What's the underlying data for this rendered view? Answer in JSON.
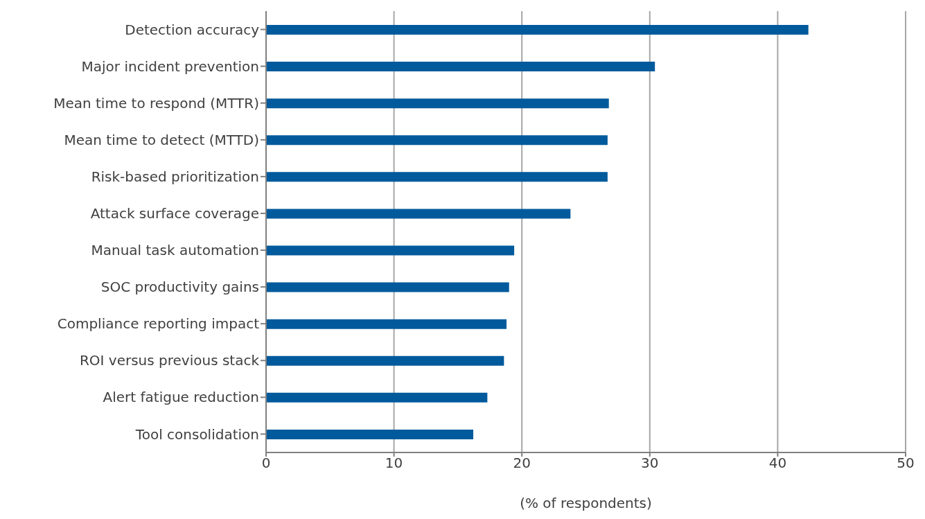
{
  "chart_data": {
    "type": "bar",
    "orientation": "horizontal",
    "xlabel": "(% of respondents)",
    "categories": [
      "Detection accuracy",
      "Major incident prevention",
      "Mean time to respond (MTTR)",
      "Mean time to detect (MTTD)",
      "Risk-based prioritization",
      "Attack surface coverage",
      "Manual task automation",
      "SOC productivity gains",
      "Compliance reporting impact",
      "ROI versus previous stack",
      "Alert fatigue reduction",
      "Tool consolidation"
    ],
    "values": [
      42.4,
      30.4,
      26.8,
      26.7,
      26.7,
      23.8,
      19.4,
      19.0,
      18.8,
      18.6,
      17.3,
      16.2
    ],
    "color": "#005a9c",
    "xlim": [
      0,
      50
    ],
    "xticks": [
      0,
      10,
      20,
      30,
      40,
      50
    ],
    "grid": "x"
  }
}
